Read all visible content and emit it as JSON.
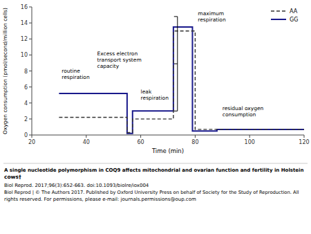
{
  "chart_data": {
    "type": "line",
    "xlabel": "Time (min)",
    "ylabel": "Oxygen consumption (pmol/second/million cells)",
    "xlim": [
      20,
      120
    ],
    "ylim": [
      0,
      16
    ],
    "xticks": [
      20,
      40,
      60,
      80,
      100,
      120
    ],
    "yticks": [
      0,
      2,
      4,
      6,
      8,
      10,
      12,
      14,
      16
    ],
    "grid": false,
    "legend": "upper right",
    "series": [
      {
        "name": "GG",
        "color": "#1a1a8c",
        "line_style": "solid",
        "x": [
          30,
          55,
          55,
          57,
          57,
          72,
          72,
          79,
          79,
          88,
          88,
          120
        ],
        "values": [
          5.2,
          5.2,
          0.2,
          0.2,
          3.0,
          3.0,
          13.5,
          13.5,
          0.5,
          0.5,
          0.7,
          0.7
        ]
      },
      {
        "name": "AA",
        "color": "#333333",
        "line_style": "dashed",
        "x": [
          30,
          55,
          55,
          57,
          57,
          72,
          72,
          80,
          80,
          88,
          88,
          120
        ],
        "values": [
          2.2,
          2.2,
          0.3,
          0.3,
          2.0,
          2.0,
          13.0,
          13.0,
          0.7,
          0.7,
          0.7,
          0.7
        ]
      }
    ],
    "annotations": [
      {
        "text": "routine\nrespiration",
        "x": 31,
        "y": 6.8
      },
      {
        "text": "leak\nrespiration",
        "x": 60,
        "y": 4.2
      },
      {
        "text": "maximum\nrespiration",
        "x": 81,
        "y": 14.0
      },
      {
        "text": "residual oxygen\nconsumption",
        "x": 90,
        "y": 2.2
      },
      {
        "text": "Excess electron\ntransport system\ncapacity",
        "x": 44,
        "y": 9.4,
        "bracket": {
          "x": 73.5,
          "y": [
            3.0,
            14.8
          ]
        }
      }
    ],
    "caption": [
      "A single nucleotide polymorphism in COQ9 affects mitochondrial and ovarian function and fertility in Holstein",
      "cows†",
      "Biol Reprod. 2017;96(3):652-663. doi:10.1093/biolre/iox004",
      "Biol Reprod | © The Authors 2017. Published by Oxford University Press on behalf of Society for the Study of Reproduction. All",
      "rights reserved. For permissions, please e-mail: journals.permissions@oup.com"
    ]
  }
}
